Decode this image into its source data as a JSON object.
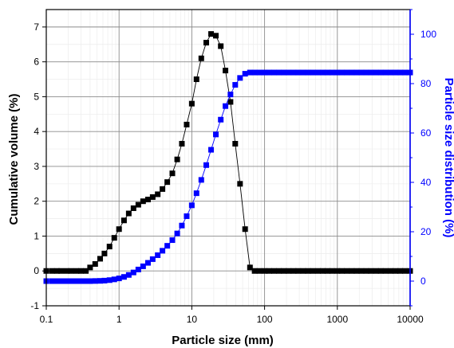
{
  "chart_data": {
    "type": "scatter",
    "xlabel": "Particle size (mm)",
    "ylabel": "Cumulative volume (%)",
    "y2label": "Particle size distribution (%)",
    "xscale": "log",
    "xlim": [
      0.1,
      10000
    ],
    "ylim": [
      -1,
      7.5
    ],
    "y2lim": [
      -10,
      110
    ],
    "grid": true,
    "x_ticks": [
      "0.1",
      "1",
      "10",
      "100",
      "1000",
      "10000"
    ],
    "y_ticks": [
      "-1",
      "0",
      "1",
      "2",
      "3",
      "4",
      "5",
      "6",
      "7"
    ],
    "y2_ticks": [
      "0",
      "20",
      "40",
      "60",
      "80",
      "100"
    ],
    "colors": {
      "left": "#000000",
      "right": "#0000ff"
    },
    "series": [
      {
        "axis": "left",
        "marker": "square",
        "x": [
          0.1,
          0.12,
          0.14,
          0.16,
          0.19,
          0.22,
          0.26,
          0.3,
          0.35,
          0.4,
          0.47,
          0.55,
          0.63,
          0.74,
          0.86,
          1.0,
          1.17,
          1.36,
          1.58,
          1.84,
          2.14,
          2.5,
          2.9,
          3.4,
          3.95,
          4.6,
          5.4,
          6.3,
          7.3,
          8.5,
          10,
          11.6,
          13.5,
          15.8,
          18.4,
          21.4,
          25,
          29,
          34,
          39.5,
          46,
          54,
          63,
          73,
          85,
          100,
          116,
          135,
          158,
          184,
          214,
          250,
          290,
          340,
          395,
          460,
          540,
          630,
          730,
          850,
          1000,
          1160,
          1350,
          1580,
          1840,
          2140,
          2500,
          2900,
          3400,
          3950,
          4600,
          5400,
          6300,
          7300,
          8500,
          10000
        ],
        "y": [
          0,
          0,
          0,
          0,
          0,
          0,
          0,
          0,
          0,
          0.1,
          0.2,
          0.35,
          0.5,
          0.7,
          0.95,
          1.2,
          1.45,
          1.65,
          1.8,
          1.9,
          2.0,
          2.05,
          2.12,
          2.2,
          2.35,
          2.55,
          2.8,
          3.2,
          3.65,
          4.2,
          4.8,
          5.5,
          6.1,
          6.55,
          6.8,
          6.75,
          6.45,
          5.75,
          4.85,
          3.65,
          2.5,
          1.2,
          0.1,
          0,
          0,
          0,
          0,
          0,
          0,
          0,
          0,
          0,
          0,
          0,
          0,
          0,
          0,
          0,
          0,
          0,
          0,
          0,
          0,
          0,
          0,
          0,
          0,
          0,
          0,
          0,
          0,
          0,
          0,
          0,
          0,
          0
        ]
      },
      {
        "axis": "right",
        "marker": "square",
        "x": [
          0.1,
          0.12,
          0.14,
          0.16,
          0.19,
          0.22,
          0.26,
          0.3,
          0.35,
          0.4,
          0.47,
          0.55,
          0.63,
          0.74,
          0.86,
          1.0,
          1.17,
          1.36,
          1.58,
          1.84,
          2.14,
          2.5,
          2.9,
          3.4,
          3.95,
          4.6,
          5.4,
          6.3,
          7.3,
          8.5,
          10,
          11.6,
          13.5,
          15.8,
          18.4,
          21.4,
          25,
          29,
          34,
          39.5,
          46,
          54,
          63,
          73,
          85,
          100,
          116,
          135,
          158,
          184,
          214,
          250,
          290,
          340,
          395,
          460,
          540,
          630,
          730,
          850,
          1000,
          1160,
          1350,
          1580,
          1840,
          2140,
          2500,
          2900,
          3400,
          3950,
          4600,
          5400,
          6300,
          7300,
          8500,
          10000
        ],
        "y": [
          0,
          0,
          0,
          0,
          0,
          0,
          0,
          0,
          0,
          0,
          0.05,
          0.1,
          0.2,
          0.4,
          0.7,
          1.1,
          1.7,
          2.5,
          3.5,
          4.7,
          6.0,
          7.4,
          8.9,
          10.5,
          12.3,
          14.3,
          16.6,
          19.3,
          22.5,
          26.3,
          30.7,
          35.6,
          41.0,
          47.0,
          53.2,
          59.4,
          65.4,
          70.9,
          75.6,
          79.5,
          82.3,
          84.0,
          84.5,
          84.5,
          84.5,
          84.5,
          84.5,
          84.5,
          84.5,
          84.5,
          84.5,
          84.5,
          84.5,
          84.5,
          84.5,
          84.5,
          84.5,
          84.5,
          84.5,
          84.5,
          84.5,
          84.5,
          84.5,
          84.5,
          84.5,
          84.5,
          84.5,
          84.5,
          84.5,
          84.5,
          84.5,
          84.5,
          84.5,
          84.5,
          84.5,
          84.5
        ]
      }
    ]
  }
}
